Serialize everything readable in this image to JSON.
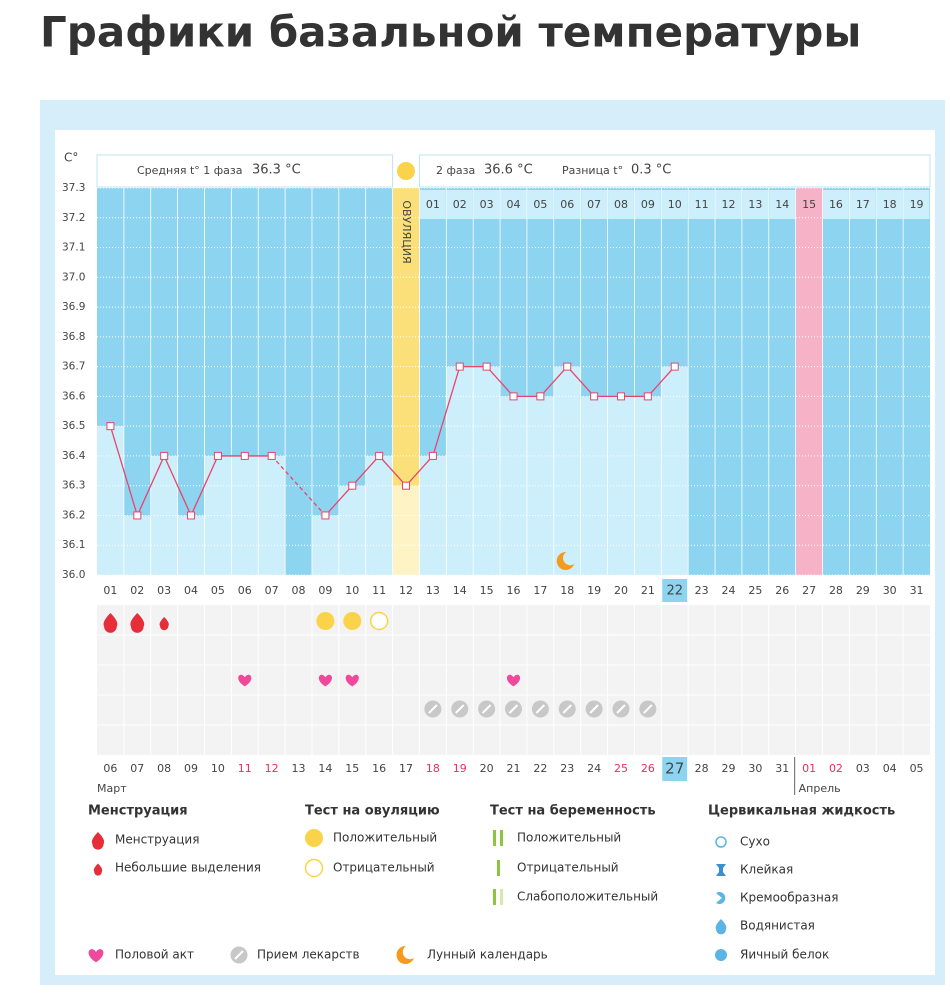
{
  "title": "Графики базальной температуры",
  "chart_data": {
    "type": "bar",
    "y_axis_label": "С°",
    "phase1_label": "Средняя t° 1 фаза",
    "phase1_value": "36.3 °С",
    "phase2_label": "2 фаза",
    "phase2_value": "36.6 °С",
    "diff_label": "Разница t°",
    "diff_value": "0.3 °С",
    "ovulation_label": "ОВУЛЯЦИЯ",
    "categories": [
      "01",
      "02",
      "03",
      "04",
      "05",
      "06",
      "07",
      "08",
      "09",
      "10",
      "11",
      "12",
      "13",
      "14",
      "15",
      "16",
      "17",
      "18",
      "19",
      "20",
      "21",
      "22",
      "23",
      "24",
      "25",
      "26",
      "27",
      "28",
      "29",
      "30",
      "31"
    ],
    "values": [
      36.5,
      36.2,
      36.4,
      36.2,
      36.4,
      36.4,
      36.4,
      null,
      36.2,
      36.3,
      36.4,
      36.3,
      36.4,
      36.7,
      36.7,
      36.6,
      36.6,
      36.7,
      36.6,
      36.6,
      36.6,
      36.7,
      null,
      null,
      null,
      null,
      null,
      null,
      null,
      null,
      null
    ],
    "color": "#e8456b",
    "ylim": [
      36.0,
      37.3
    ],
    "yticks": [
      {
        "value": 36,
        "label": "36.0"
      },
      36.1,
      36.2,
      36.3,
      36.4,
      36.5,
      36.6,
      36.7,
      36.8,
      36.9,
      {
        "value": 37,
        "label": "37.0"
      },
      37.1,
      37.2,
      37.3
    ],
    "grid": true,
    "phase2_days": [
      "01",
      "02",
      "03",
      "04",
      "05",
      "06",
      "07",
      "08",
      "09",
      "10",
      "11",
      "12",
      "13",
      "14",
      "15",
      "16",
      "17",
      "18",
      "19"
    ],
    "dates": [
      "06",
      "07",
      "08",
      "09",
      "10",
      "11",
      "12",
      "13",
      "14",
      "15",
      "16",
      "17",
      "18",
      "19",
      "20",
      "21",
      "22",
      "23",
      "24",
      "25",
      "26",
      "27",
      "28",
      "29",
      "30",
      "31",
      "01",
      "02",
      "03",
      "04",
      "05"
    ],
    "date_colors": [
      "#444",
      "#444",
      "#444",
      "#444",
      "#444",
      "#e8305a",
      "#e8305a",
      "#444",
      "#444",
      "#444",
      "#444",
      "#444",
      "#e8305a",
      "#e8305a",
      "#444",
      "#444",
      "#444",
      "#444",
      "#444",
      "#e8305a",
      "#e8305a",
      "#444",
      "#444",
      "#444",
      "#444",
      "#444",
      "#e8305a",
      "#e8305a",
      "#444",
      "#444",
      "#444"
    ],
    "months": [
      "Март",
      "Апрель"
    ]
  },
  "legend": {
    "groups": [
      {
        "title": "Менструация",
        "items": [
          "Менструация",
          "Небольшие выделения"
        ]
      },
      {
        "title": "Тест на овуляцию",
        "items": [
          "Положительный",
          "Отрицательный"
        ]
      },
      {
        "title": "Тест на беременность",
        "items": [
          "Положительный",
          "Отрицательный",
          "Слабоположительный"
        ]
      },
      {
        "title": "Цервикальная жидкость",
        "items": [
          "Сухо",
          "Клейкая",
          "Кремообразная",
          "Водянистая",
          "Яичный белок"
        ]
      }
    ],
    "extra": [
      "Половой акт",
      "Прием лекарств",
      "Лунный календарь"
    ]
  }
}
